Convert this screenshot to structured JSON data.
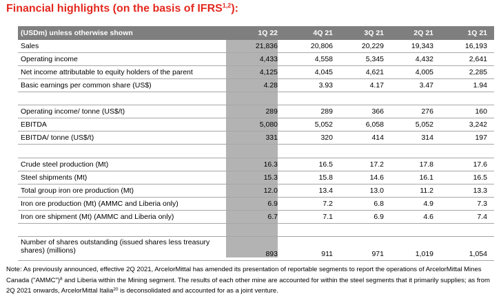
{
  "title": {
    "text": "Financial highlights (on the basis of IFRS",
    "sup": "1,2",
    "suffix": "):"
  },
  "table": {
    "header": {
      "label": "(USDm) unless otherwise shown",
      "cols": [
        "1Q 22",
        "4Q 21",
        "3Q 21",
        "2Q 21",
        "1Q 21"
      ]
    },
    "group1": [
      {
        "label": "Sales",
        "values": [
          "21,836",
          "20,806",
          "20,229",
          "19,343",
          "16,193"
        ]
      },
      {
        "label": "Operating income",
        "values": [
          "4,433",
          "4,558",
          "5,345",
          "4,432",
          "2,641"
        ]
      },
      {
        "label": "Net income attributable to equity holders of the parent",
        "values": [
          "4,125",
          "4,045",
          "4,621",
          "4,005",
          "2,285"
        ]
      },
      {
        "label": "Basic earnings per common share (US$)",
        "values": [
          "4.28",
          "3.93",
          "4.17",
          "3.47",
          "1.94"
        ]
      }
    ],
    "group2": [
      {
        "label": "Operating income/ tonne (US$/t)",
        "values": [
          "289",
          "289",
          "366",
          "276",
          "160"
        ]
      },
      {
        "label": "EBITDA",
        "values": [
          "5,080",
          "5,052",
          "6,058",
          "5,052",
          "3,242"
        ]
      },
      {
        "label": "EBITDA/ tonne (US$/t)",
        "values": [
          "331",
          "320",
          "414",
          "314",
          "197"
        ]
      }
    ],
    "group3": [
      {
        "label": "Crude steel production (Mt)",
        "values": [
          "16.3",
          "16.5",
          "17.2",
          "17.8",
          "17.6"
        ]
      },
      {
        "label": "Steel shipments (Mt)",
        "values": [
          "15.3",
          "15.8",
          "14.6",
          "16.1",
          "16.5"
        ]
      },
      {
        "label": "Total group iron ore production (Mt)",
        "values": [
          "12.0",
          "13.4",
          "13.0",
          "11.2",
          "13.3"
        ]
      },
      {
        "label": "Iron ore production (Mt) (AMMC and Liberia only)",
        "values": [
          "6.9",
          "7.2",
          "6.8",
          "4.9",
          "7.3"
        ]
      },
      {
        "label": "Iron ore shipment (Mt) (AMMC and Liberia only)",
        "values": [
          "6.7",
          "7.1",
          "6.9",
          "4.6",
          "7.4"
        ]
      }
    ],
    "group4": [
      {
        "label": "Number of shares outstanding (issued shares less treasury shares) (millions)",
        "values": [
          "893",
          "911",
          "971",
          "1,019",
          "1,054"
        ]
      }
    ]
  },
  "note": {
    "part1": "Note: As previously announced, effective 2Q 2021, ArcelorMittal has amended its presentation of reportable segments to report the operations of ArcelorMittal Mines Canada (\"AMMC\")",
    "sup1": "8",
    "part2": " and Liberia within the Mining segment. The results of each other mine are accounted for within the steel segments that it primarily supplies; as from 2Q 2021 onwards, ArcelorMittal Italia",
    "sup2": "20",
    "part3": " is deconsolidated and accounted for as a joint venture."
  }
}
